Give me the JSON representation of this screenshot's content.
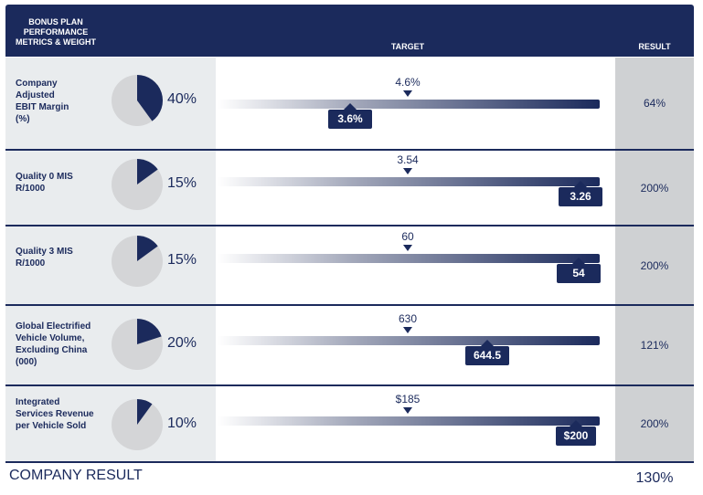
{
  "header": {
    "metrics_label": "BONUS PLAN\nPERFORMANCE\nMETRICS & WEIGHT",
    "target_label": "TARGET",
    "result_label": "RESULT"
  },
  "colors": {
    "navy": "#1b2a5c",
    "row_background": "#e9ecee",
    "result_background": "#cfd1d3",
    "pie_remainder": "#d4d5d7"
  },
  "chart_data": {
    "type": "table",
    "rows": [
      {
        "metric": "Company\nAdjusted\nEBIT Margin\n(%)",
        "weight": "40%",
        "weight_value": 40,
        "target": "4.6%",
        "actual": "3.6%",
        "result": "64%"
      },
      {
        "metric": "Quality 0 MIS\nR/1000",
        "weight": "15%",
        "weight_value": 15,
        "target": "3.54",
        "actual": "3.26",
        "result": "200%"
      },
      {
        "metric": "Quality 3 MIS\nR/1000",
        "weight": "15%",
        "weight_value": 15,
        "target": "60",
        "actual": "54",
        "result": "200%"
      },
      {
        "metric": "Global Electrified\nVehicle Volume,\nExcluding China\n(000)",
        "weight": "20%",
        "weight_value": 20,
        "target": "630",
        "actual": "644.5",
        "result": "121%"
      },
      {
        "metric": "Integrated\nServices Revenue\nper Vehicle Sold",
        "weight": "10%",
        "weight_value": 10,
        "target": "$185",
        "actual": "$200",
        "result": "200%"
      }
    ]
  },
  "footer": {
    "label": "COMPANY RESULT",
    "value": "130%"
  }
}
